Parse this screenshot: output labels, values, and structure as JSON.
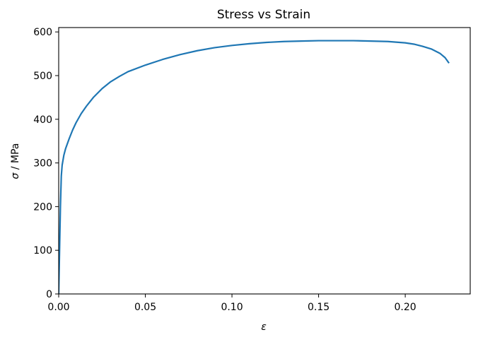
{
  "chart_data": {
    "type": "line",
    "title": "Stress vs Strain",
    "xlabel": "ε",
    "ylabel_symbol": "σ",
    "ylabel_unit": " / MPa",
    "xlim": [
      0,
      0.2375
    ],
    "ylim": [
      0,
      610
    ],
    "xticks": [
      0.0,
      0.05,
      0.1,
      0.15,
      0.2
    ],
    "xtick_labels": [
      "0.00",
      "0.05",
      "0.10",
      "0.15",
      "0.20"
    ],
    "yticks": [
      0,
      100,
      200,
      300,
      400,
      500,
      600
    ],
    "ytick_labels": [
      "0",
      "100",
      "200",
      "300",
      "400",
      "500",
      "600"
    ],
    "grid": false,
    "series": [
      {
        "color": "#1f77b4",
        "x": [
          0.0,
          0.0005,
          0.001,
          0.0015,
          0.002,
          0.003,
          0.004,
          0.006,
          0.008,
          0.01,
          0.013,
          0.016,
          0.02,
          0.025,
          0.03,
          0.035,
          0.04,
          0.05,
          0.06,
          0.07,
          0.08,
          0.09,
          0.1,
          0.11,
          0.12,
          0.13,
          0.14,
          0.15,
          0.16,
          0.17,
          0.18,
          0.19,
          0.2,
          0.205,
          0.21,
          0.215,
          0.22,
          0.223,
          0.225
        ],
        "y": [
          0,
          100,
          200,
          270,
          295,
          318,
          333,
          355,
          375,
          392,
          413,
          430,
          450,
          470,
          486,
          498,
          509,
          524,
          537,
          548,
          557,
          564,
          569,
          573,
          576,
          578,
          579,
          580,
          580,
          580,
          579,
          578,
          575,
          572,
          567,
          561,
          551,
          541,
          530
        ]
      }
    ]
  }
}
